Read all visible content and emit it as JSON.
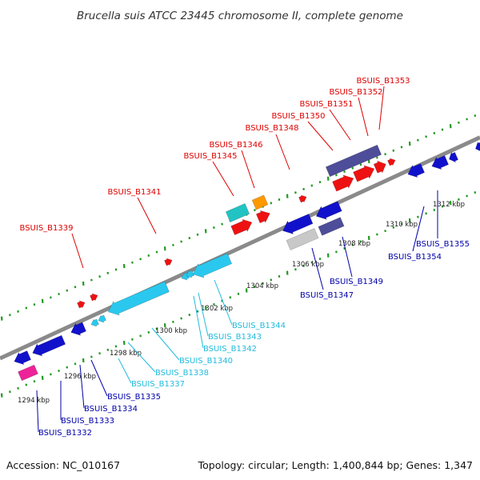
{
  "title": "Brucella suis ATCC 23445 chromosome II, complete genome",
  "footer": {
    "accession": "Accession: NC_010167",
    "summary": "Topology: circular; Length: 1,400,844 bp; Genes: 1,347"
  },
  "colors": {
    "red": "#ee1111",
    "blue": "#1111cc",
    "cyan": "#2ac8ee",
    "teal": "#22c3c3",
    "orange": "#ff9900",
    "slate": "#4d4d99",
    "gray": "#c8c8c8",
    "magenta": "#ee2299",
    "label_red": "#dd0000",
    "label_blue": "#0000aa",
    "label_cyan": "#22bbdd",
    "backbone": "#8a8a8a",
    "tick": "#229922"
  },
  "scale_labels": [
    "1294 kbp",
    "1296 kbp",
    "1298 kbp",
    "1300 kbp",
    "1302 kbp",
    "1304 kbp",
    "1306 kbp",
    "1308 kbp",
    "1310 kbp",
    "1312 kbp"
  ],
  "gene_labels": {
    "top": [
      "BSUIS_B1339",
      "BSUIS_B1341",
      "BSUIS_B1345",
      "BSUIS_B1346",
      "BSUIS_B1348",
      "BSUIS_B1350",
      "BSUIS_B1351",
      "BSUIS_B1352",
      "BSUIS_B1353"
    ],
    "cyan": [
      "BSUIS_B1337",
      "BSUIS_B1338",
      "BSUIS_B1340",
      "BSUIS_B1342",
      "BSUIS_B1343",
      "BSUIS_B1344"
    ],
    "bottom": [
      "BSUIS_B1332",
      "BSUIS_B1333",
      "BSUIS_B1334",
      "BSUIS_B1335",
      "BSUIS_B1347",
      "BSUIS_B1349",
      "BSUIS_B1354",
      "BSUIS_B1355"
    ]
  }
}
